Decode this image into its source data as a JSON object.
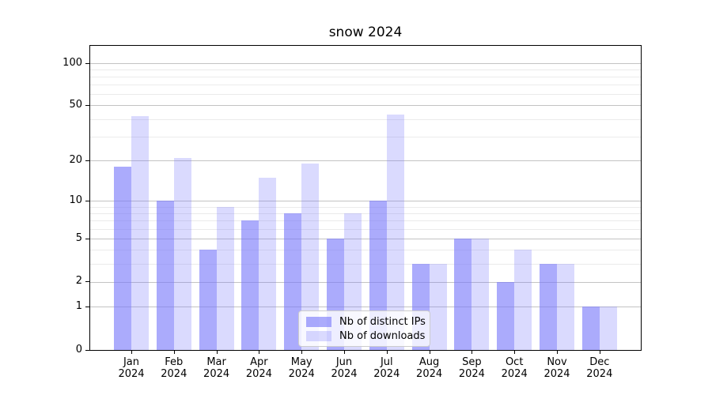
{
  "chart_data": {
    "type": "bar",
    "title": "snow 2024",
    "categories": [
      "Jan",
      "Feb",
      "Mar",
      "Apr",
      "May",
      "Jun",
      "Jul",
      "Aug",
      "Sep",
      "Oct",
      "Nov",
      "Dec"
    ],
    "year": "2024",
    "series": [
      {
        "name": "Nb of distinct IPs",
        "color": "rgba(120,120,250,0.62)",
        "values": [
          18,
          10,
          4,
          7,
          8,
          5,
          10,
          3,
          5,
          2,
          3,
          1
        ]
      },
      {
        "name": "Nb of downloads",
        "color": "rgba(120,120,250,0.27)",
        "values": [
          42,
          21,
          9,
          15,
          19,
          8,
          43,
          3,
          5,
          4,
          3,
          1
        ]
      }
    ],
    "xlabel": "",
    "ylabel": "",
    "y_scale": "log1p",
    "y_ticks": [
      0,
      1,
      2,
      5,
      10,
      20,
      50,
      100
    ],
    "y_minor_ticks": [
      3,
      4,
      6,
      7,
      8,
      9,
      30,
      40,
      60,
      70,
      80,
      90
    ],
    "ylim": [
      0,
      132
    ],
    "grid": "horizontal",
    "legend_position": "lower-center",
    "colors": {
      "major_grid": "#c3c3c3",
      "minor_grid": "#ebebeb",
      "axis": "#000000",
      "legend_border": "#cccccc"
    }
  }
}
